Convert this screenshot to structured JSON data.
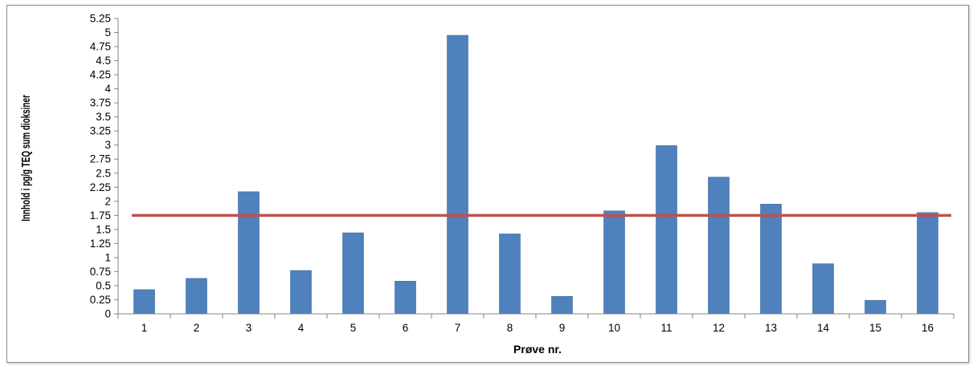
{
  "chart_data": {
    "type": "bar",
    "title": "",
    "xlabel": "Prøve nr.",
    "ylabel": "Innhold i pg/g TEQ sum dioksiner",
    "categories": [
      "1",
      "2",
      "3",
      "4",
      "5",
      "6",
      "7",
      "8",
      "9",
      "10",
      "11",
      "12",
      "13",
      "14",
      "15",
      "16"
    ],
    "values": [
      0.43,
      0.63,
      2.17,
      0.77,
      1.44,
      0.58,
      4.95,
      1.42,
      0.31,
      1.83,
      2.99,
      2.43,
      1.95,
      0.89,
      0.24,
      1.8
    ],
    "ylim": [
      0,
      5.25
    ],
    "yticks": [
      "0",
      "0.25",
      "0.5",
      "0.75",
      "1",
      "1.25",
      "1.5",
      "1.75",
      "2",
      "2.25",
      "2.5",
      "2.75",
      "3",
      "3.25",
      "3.5",
      "3.75",
      "4",
      "4.25",
      "4.5",
      "4.75",
      "5",
      "5.25"
    ],
    "reference_line": 1.75,
    "grid": false,
    "legend": "none",
    "colors": {
      "bar": "#4f81bd",
      "bar_edge": "#3a6aa3",
      "reference_line": "#c0504d",
      "axis": "#868686"
    }
  }
}
